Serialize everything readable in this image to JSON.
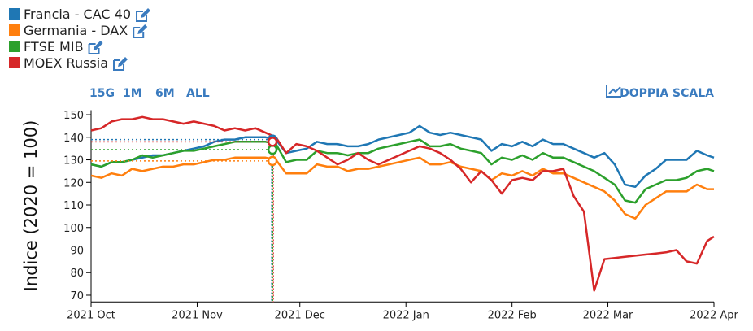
{
  "chart_data": {
    "type": "line",
    "y_label": "Indice (2020 = 100)",
    "x": [
      0,
      3,
      6,
      9,
      12,
      15,
      18,
      21,
      24,
      27,
      30,
      33,
      36,
      39,
      42,
      45,
      48,
      51,
      54,
      57,
      60,
      63,
      66,
      69,
      72,
      75,
      78,
      81,
      84,
      87,
      90,
      93,
      96,
      99,
      102,
      105,
      108,
      111,
      114,
      117,
      120,
      123,
      126,
      129,
      132,
      135,
      138,
      141,
      144,
      147,
      150,
      153,
      156,
      159,
      162,
      165,
      168,
      171,
      174,
      177,
      180,
      182
    ],
    "xlim": [
      0,
      182
    ],
    "xticks": [
      {
        "value": 0,
        "label": "2021 Oct"
      },
      {
        "value": 31,
        "label": "2021 Nov"
      },
      {
        "value": 61,
        "label": "2021 Dec"
      },
      {
        "value": 92,
        "label": "2022 Jan"
      },
      {
        "value": 123,
        "label": "2022 Feb"
      },
      {
        "value": 151,
        "label": "2022 Mar"
      },
      {
        "value": 182,
        "label": "2022 Apr"
      }
    ],
    "ylim": [
      67,
      152
    ],
    "yticks": [
      70,
      80,
      90,
      100,
      110,
      120,
      130,
      140,
      150
    ],
    "series": [
      {
        "name": "Francia - CAC 40",
        "color": "#1f77b4",
        "values": [
          128,
          127,
          129,
          129,
          130,
          131,
          132,
          132,
          133,
          134,
          135,
          136,
          138,
          139,
          139,
          140,
          140,
          140,
          139,
          133,
          134,
          135,
          138,
          137,
          137,
          136,
          136,
          137,
          139,
          140,
          141,
          142,
          145,
          142,
          141,
          142,
          141,
          140,
          139,
          134,
          137,
          136,
          138,
          136,
          139,
          137,
          137,
          135,
          133,
          131,
          133,
          128,
          119,
          118,
          123,
          126,
          130,
          130,
          130,
          134,
          132,
          131
        ]
      },
      {
        "name": "Germania - DAX",
        "color": "#ff7f0e",
        "values": [
          123,
          122,
          124,
          123,
          126,
          125,
          126,
          127,
          127,
          128,
          128,
          129,
          130,
          130,
          131,
          131,
          131,
          131,
          130,
          124,
          124,
          124,
          128,
          127,
          127,
          125,
          126,
          126,
          127,
          128,
          129,
          130,
          131,
          128,
          128,
          129,
          127,
          126,
          125,
          121,
          124,
          123,
          125,
          123,
          126,
          124,
          124,
          122,
          120,
          118,
          116,
          112,
          106,
          104,
          110,
          113,
          116,
          116,
          116,
          119,
          117,
          117
        ]
      },
      {
        "name": "FTSE MIB",
        "color": "#2ca02c",
        "values": [
          128,
          127,
          129,
          129,
          130,
          132,
          131,
          132,
          133,
          134,
          134,
          135,
          136,
          137,
          138,
          138,
          138,
          138,
          137,
          129,
          130,
          130,
          134,
          133,
          133,
          132,
          133,
          133,
          135,
          136,
          137,
          138,
          139,
          136,
          136,
          137,
          135,
          134,
          133,
          128,
          131,
          130,
          132,
          130,
          133,
          131,
          131,
          129,
          127,
          125,
          122,
          119,
          112,
          111,
          117,
          119,
          121,
          121,
          122,
          125,
          126,
          125
        ]
      },
      {
        "name": "MOEX Russia",
        "color": "#d62728",
        "values": [
          143,
          144,
          147,
          148,
          148,
          149,
          148,
          148,
          147,
          146,
          147,
          146,
          145,
          143,
          144,
          143,
          144,
          142,
          140,
          133,
          137,
          136,
          134,
          131,
          128,
          130,
          133,
          130,
          128,
          130,
          132,
          134,
          136,
          135,
          133,
          130,
          126,
          120,
          125,
          121,
          115,
          121,
          122,
          121,
          125,
          125,
          126,
          114,
          107,
          72,
          86,
          86.5,
          87,
          87.5,
          88,
          88.5,
          89,
          90,
          85,
          84,
          94,
          96
        ]
      }
    ],
    "cursor": {
      "x": 53,
      "values": [
        139,
        129.5,
        134.5,
        138
      ]
    }
  },
  "controls": {
    "ranges": [
      "15G",
      "1M",
      "6M",
      "ALL"
    ],
    "dual_axis": "DOPPIA SCALA"
  }
}
